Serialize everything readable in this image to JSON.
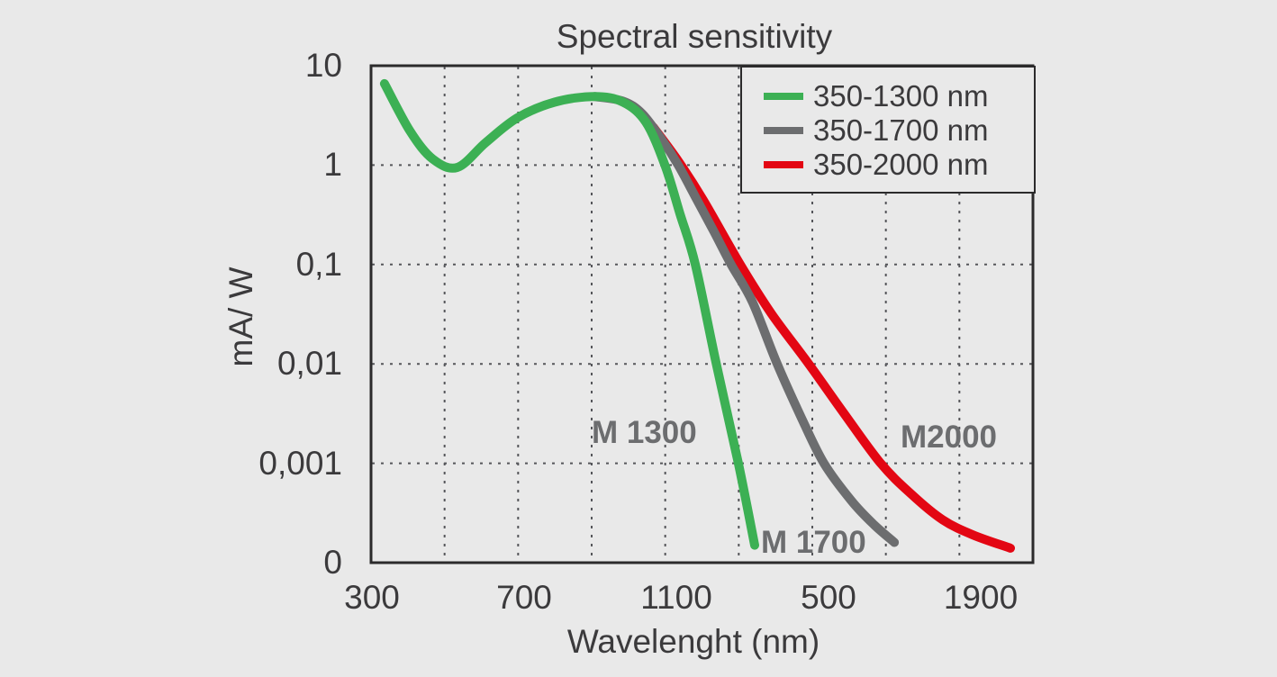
{
  "chart_data": {
    "type": "line",
    "title": "Spectral sensitivity",
    "xlabel": "Wavelenght (nm)",
    "ylabel": "mA/ W",
    "units": {
      "x": "nm",
      "y": "mA/W"
    },
    "x_tick_labels": [
      "300",
      "700",
      "1100",
      "500",
      "1900"
    ],
    "y_tick_labels": [
      "10",
      "1",
      "0,1",
      "0,01",
      "0,001",
      "0"
    ],
    "y_scale": "log",
    "x_range_nm": [
      300,
      1900
    ],
    "grid": "dashed",
    "legend_position": "top-right",
    "colors": {
      "background": "#e9e9e9",
      "axis": "#2b2a2b",
      "grid": "#55565a",
      "text": "#3b3a3c",
      "annotation": "#6c6d6f",
      "green": "#3cb054",
      "gray": "#6c6d6f",
      "red": "#e30613"
    },
    "legend": [
      {
        "label": "350-1300 nm",
        "color": "#3cb054"
      },
      {
        "label": "350-1700 nm",
        "color": "#6c6d6f"
      },
      {
        "label": "350-2000 nm",
        "color": "#e30613"
      }
    ],
    "annotations": [
      {
        "text": "M 1300",
        "series": "350-1300 nm"
      },
      {
        "text": "M 1700",
        "series": "350-1700 nm"
      },
      {
        "text": "M2000",
        "series": "350-2000 nm"
      }
    ],
    "series": [
      {
        "name": "350-1300 nm",
        "color": "#3cb054",
        "points": [
          [
            333,
            6.6
          ],
          [
            400,
            2.2
          ],
          [
            460,
            1.15
          ],
          [
            525,
            0.95
          ],
          [
            600,
            1.7
          ],
          [
            683,
            3.0
          ],
          [
            780,
            4.3
          ],
          [
            885,
            4.9
          ],
          [
            960,
            4.3
          ],
          [
            1020,
            2.7
          ],
          [
            1070,
            1.0
          ],
          [
            1110,
            0.32
          ],
          [
            1150,
            0.1
          ],
          [
            1205,
            0.01
          ],
          [
            1263,
            0.001
          ],
          [
            1306,
            0.00015
          ]
        ]
      },
      {
        "name": "350-1700 nm",
        "color": "#6c6d6f",
        "points": [
          [
            885,
            4.9
          ],
          [
            960,
            4.4
          ],
          [
            1010,
            3.3
          ],
          [
            1060,
            1.85
          ],
          [
            1105,
            1.0
          ],
          [
            1150,
            0.48
          ],
          [
            1200,
            0.21
          ],
          [
            1244,
            0.1
          ],
          [
            1300,
            0.042
          ],
          [
            1365,
            0.01
          ],
          [
            1430,
            0.0028
          ],
          [
            1488,
            0.001
          ],
          [
            1560,
            0.00042
          ],
          [
            1620,
            0.00024
          ],
          [
            1673,
            0.00016
          ]
        ]
      },
      {
        "name": "350-2000 nm",
        "color": "#e30613",
        "points": [
          [
            1040,
            2.4
          ],
          [
            1105,
            1.1
          ],
          [
            1170,
            0.45
          ],
          [
            1268,
            0.1
          ],
          [
            1350,
            0.032
          ],
          [
            1448,
            0.01
          ],
          [
            1540,
            0.0032
          ],
          [
            1637,
            0.001
          ],
          [
            1720,
            0.00048
          ],
          [
            1800,
            0.00027
          ],
          [
            1880,
            0.00019
          ],
          [
            1978,
            0.00014
          ]
        ]
      }
    ]
  }
}
